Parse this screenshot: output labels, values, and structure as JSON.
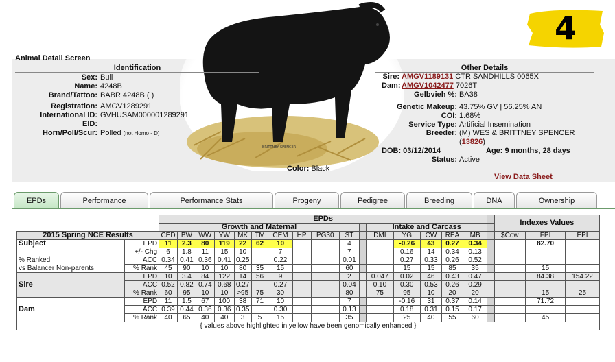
{
  "screen_title": "Animal Detail Screen",
  "badge_number": "4",
  "identification": {
    "header": "Identification",
    "rows": [
      {
        "label": "Sex:",
        "value": "Bull"
      },
      {
        "label": "Name:",
        "value": "4248B"
      },
      {
        "label": "Brand/Tattoo:",
        "value": "BABR 4248B ( )"
      },
      {
        "label": "Registration:",
        "value": "AMGV1289291"
      },
      {
        "label": "International ID:",
        "value": "GVHUSAM000001289291"
      },
      {
        "label": "EID:",
        "value": ""
      },
      {
        "label": "Horn/Poll/Scur:",
        "value": "Polled",
        "note": "(not Homo - D)"
      }
    ]
  },
  "color": {
    "label": "Color:",
    "value": "Black"
  },
  "photo_signature": "BRITTNEY SPENCER",
  "other_details": {
    "header": "Other Details",
    "sire": {
      "label": "Sire:",
      "reg": "AMGV1189131",
      "name": "CTR SANDHILLS 0065X"
    },
    "dam": {
      "label": "Dam:",
      "reg": "AMGV1042477",
      "name": "7026T"
    },
    "gelbvieh_pct": {
      "label": "Gelbvieh %:",
      "value": "BA38"
    },
    "genetic_makeup": {
      "label": "Genetic Makeup:",
      "value": "43.75% GV | 56.25% AN"
    },
    "coi": {
      "label": "COI:",
      "value": "1.68%"
    },
    "service_type": {
      "label": "Service Type:",
      "value": "Artificial Insemination"
    },
    "breeder": {
      "label": "Breeder:",
      "value": "(M) WES & BRITTNEY SPENCER",
      "id": "13826"
    },
    "dob": {
      "label": "DOB:",
      "value": "03/12/2014"
    },
    "age": {
      "label": "Age:",
      "value": "9 months, 28 days"
    },
    "status": {
      "label": "Status:",
      "value": "Active"
    }
  },
  "view_data_sheet": "View Data Sheet",
  "tabs": [
    "EPDs",
    "Performance",
    "Performance Stats",
    "Progeny",
    "Pedigree",
    "Breeding",
    "DNA",
    "Ownership"
  ],
  "active_tab": "EPDs",
  "epd_table": {
    "title": "EPDs",
    "results_title": "2015 Spring NCE Results",
    "group_growth": "Growth and Maternal",
    "group_carcass": "Intake and Carcass",
    "group_indexes": "Indexes Values",
    "columns_growth": [
      "CED",
      "BW",
      "WW",
      "YW",
      "MK",
      "TM",
      "CEM",
      "HP",
      "PG30",
      "ST"
    ],
    "columns_carcass": [
      "DMI",
      "YG",
      "CW",
      "REA",
      "MB"
    ],
    "columns_index": [
      "$Cow",
      "FPI",
      "EPI"
    ],
    "row_types": [
      "EPD",
      "+/- Chg",
      "ACC",
      "% Rank"
    ],
    "subject": {
      "name": "Subject",
      "lines": [
        "% Ranked",
        "vs Balancer Non-parents"
      ],
      "epd_growth": [
        "11",
        "2.3",
        "80",
        "119",
        "22",
        "62",
        "10",
        "",
        "",
        "4"
      ],
      "epd_carcass": [
        "",
        "-0.26",
        "43",
        "0.27",
        "0.34"
      ],
      "epd_index": [
        "",
        "82.70",
        ""
      ],
      "chg_growth": [
        "6",
        "1.8",
        "11",
        "15",
        "10",
        "",
        "7",
        "",
        "",
        "7"
      ],
      "chg_carcass": [
        "",
        "0.16",
        "14",
        "0.34",
        "0.13"
      ],
      "chg_index": [
        "",
        "",
        ""
      ],
      "acc_growth": [
        "0.34",
        "0.41",
        "0.36",
        "0.41",
        "0.25",
        "",
        "0.22",
        "",
        "",
        "0.01"
      ],
      "acc_carcass": [
        "",
        "0.27",
        "0.33",
        "0.26",
        "0.52"
      ],
      "acc_index": [
        "",
        "",
        ""
      ],
      "rank_growth": [
        "45",
        "90",
        "10",
        "10",
        "80",
        "35",
        "15",
        "",
        "",
        "60"
      ],
      "rank_carcass": [
        "",
        "15",
        "15",
        "85",
        "35"
      ],
      "rank_index": [
        "",
        "15",
        ""
      ]
    },
    "sire": {
      "name": "Sire",
      "epd_growth": [
        "10",
        "3.4",
        "84",
        "122",
        "14",
        "56",
        "9",
        "",
        "",
        "2"
      ],
      "epd_carcass": [
        "0.047",
        "0.02",
        "46",
        "0.43",
        "0.47"
      ],
      "epd_index": [
        "",
        "84.38",
        "154.22"
      ],
      "acc_growth": [
        "0.52",
        "0.82",
        "0.74",
        "0.68",
        "0.27",
        "",
        "0.27",
        "",
        "",
        "0.04"
      ],
      "acc_carcass": [
        "0.10",
        "0.30",
        "0.53",
        "0.26",
        "0.29"
      ],
      "acc_index": [
        "",
        "",
        ""
      ],
      "rank_growth": [
        "60",
        "95",
        "10",
        "10",
        ">95",
        "75",
        "30",
        "",
        "",
        "80"
      ],
      "rank_carcass": [
        "75",
        "95",
        "10",
        "20",
        "20"
      ],
      "rank_index": [
        "",
        "15",
        "25"
      ]
    },
    "dam": {
      "name": "Dam",
      "epd_growth": [
        "11",
        "1.5",
        "67",
        "100",
        "38",
        "71",
        "10",
        "",
        "",
        "7"
      ],
      "epd_carcass": [
        "",
        "-0.16",
        "31",
        "0.37",
        "0.14"
      ],
      "epd_index": [
        "",
        "71.72",
        ""
      ],
      "acc_growth": [
        "0.39",
        "0.44",
        "0.36",
        "0.36",
        "0.35",
        "",
        "0.30",
        "",
        "",
        "0.13"
      ],
      "acc_carcass": [
        "",
        "0.18",
        "0.31",
        "0.15",
        "0.17"
      ],
      "acc_index": [
        "",
        "",
        ""
      ],
      "rank_growth": [
        "40",
        "65",
        "40",
        "40",
        "3",
        "5",
        "15",
        "",
        "",
        "35"
      ],
      "rank_carcass": [
        "",
        "25",
        "40",
        "55",
        "60"
      ],
      "rank_index": [
        "",
        "45",
        ""
      ]
    },
    "highlight_growth": [
      0,
      1,
      2,
      3,
      4,
      5,
      6
    ],
    "highlight_carcass": [
      1,
      2,
      3,
      4
    ],
    "footnote": "{ values above highlighted in yellow have been genomically enhanced }"
  },
  "colors": {
    "highlight": "#ffff4a",
    "link": "#8a1b1b",
    "tab_active": "#c5e6c5",
    "badge": "#f5d400"
  }
}
